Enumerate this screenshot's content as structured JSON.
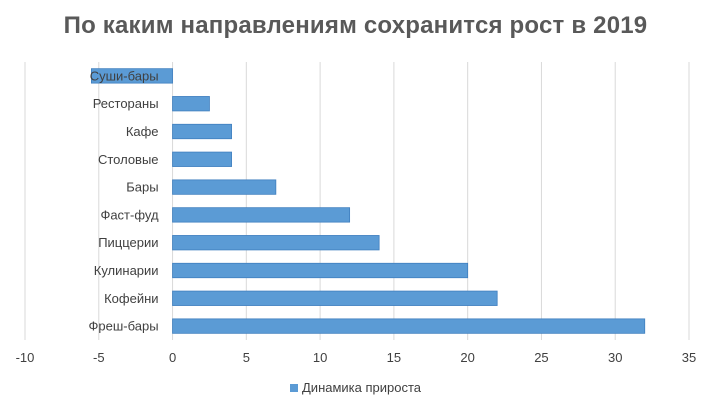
{
  "chart_data": {
    "type": "bar",
    "orientation": "horizontal",
    "title": "По каким направлениям сохранится рост в 2019",
    "categories": [
      "Фреш-бары",
      "Кофейни",
      "Кулинарии",
      "Пиццерии",
      "Фаст-фуд",
      "Бары",
      "Столовые",
      "Кафе",
      "Рестораны",
      "Суши-бары"
    ],
    "series": [
      {
        "name": "Динамика прироста",
        "values": [
          32,
          22,
          20,
          14,
          12,
          7,
          4,
          4,
          2.5,
          -5.5
        ],
        "color": "#5B9BD5"
      }
    ],
    "xlim": [
      -10,
      35
    ],
    "xticks": [
      -10,
      -5,
      0,
      5,
      10,
      15,
      20,
      25,
      30,
      35
    ],
    "xlabel": "",
    "ylabel": "",
    "grid": "vertical",
    "legend": "bottom"
  }
}
